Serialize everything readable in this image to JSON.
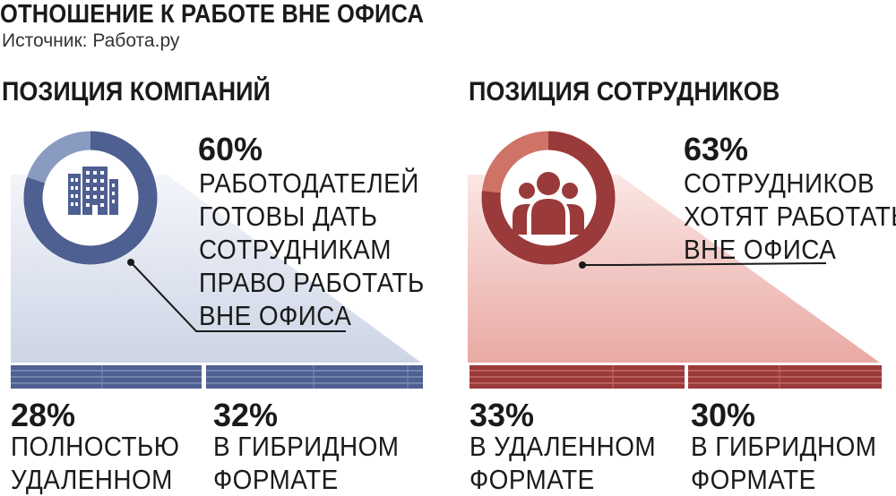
{
  "title": "ОТНОШЕНИЕ К РАБОТЕ ВНЕ ОФИСА",
  "source": "Источник: Работа.ру",
  "companies": {
    "heading": "ПОЗИЦИЯ КОМПАНИЙ",
    "main_pct": "60%",
    "main_lines": [
      "РАБОТОДАТЕЛЕЙ",
      "ГОТОВЫ ДАТЬ",
      "СОТРУДНИКАМ",
      "ПРАВО РАБОТАТЬ",
      "ВНЕ ОФИСА"
    ],
    "split": [
      {
        "pct": "28%",
        "lines": [
          "ПОЛНОСТЬЮ",
          "УДАЛЕННОМ"
        ]
      },
      {
        "pct": "32%",
        "lines": [
          "В ГИБРИДНОМ",
          "ФОРМАТЕ"
        ]
      }
    ],
    "icon": "building-icon",
    "color": "#4e5f91"
  },
  "employees": {
    "heading": "ПОЗИЦИЯ СОТРУДНИКОВ",
    "main_pct": "63%",
    "main_lines": [
      "СОТРУДНИКОВ",
      "ХОТЯТ РАБОТАТЬ",
      "ВНЕ ОФИСА"
    ],
    "split": [
      {
        "pct": "33%",
        "lines": [
          "В УДАЛЕННОМ",
          "ФОРМАТЕ"
        ]
      },
      {
        "pct": "30%",
        "lines": [
          "В ГИБРИДНОМ",
          "ФОРМАТЕ"
        ]
      }
    ],
    "icon": "people-icon",
    "color": "#9a3a3a"
  }
}
